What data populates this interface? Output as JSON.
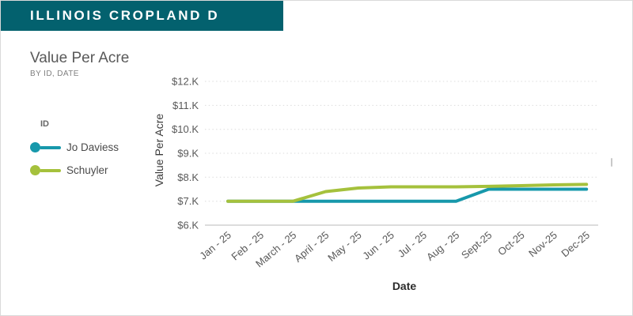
{
  "header": {
    "title": "ILLINOIS CROPLAND D"
  },
  "card": {
    "title": "Value Per Acre",
    "subtitle": "BY ID, DATE"
  },
  "legend": {
    "title": "ID"
  },
  "axes": {
    "x_title": "Date",
    "y_title": "Value Per Acre"
  },
  "colors": {
    "header_bg": "#03616e",
    "jo_daviess": "#1798ab",
    "schuyler": "#a5c13c",
    "gridline": "#dcdcdc",
    "axis_line": "#c8c8c8",
    "tick_text": "#595959"
  },
  "chart_data": {
    "type": "line",
    "title": "Value Per Acre",
    "subtitle": "BY ID, DATE",
    "legend_title": "ID",
    "legend_position": "left",
    "xlabel": "Date",
    "ylabel": "Value Per Acre",
    "grid": "horizontal-dotted",
    "categories": [
      "Jan - 25",
      "Feb - 25",
      "March - 25",
      "April - 25",
      "May - 25",
      "Jun - 25",
      "Jul - 25",
      "Aug - 25",
      "Sept-25",
      "Oct-25",
      "Nov-25",
      "Dec-25"
    ],
    "y_ticks": [
      6,
      7,
      8,
      9,
      10,
      11,
      12
    ],
    "y_tick_labels": [
      "$6.K",
      "$7.K",
      "$8.K",
      "$9.K",
      "$10.K",
      "$11.K",
      "$12.K"
    ],
    "ylim": [
      6,
      12.5
    ],
    "series": [
      {
        "name": "Jo Daviess",
        "color": "#1798ab",
        "values": [
          7.0,
          7.0,
          7.0,
          7.0,
          7.0,
          7.0,
          7.0,
          7.0,
          7.5,
          7.5,
          7.5,
          7.5
        ]
      },
      {
        "name": "Schuyler",
        "color": "#a5c13c",
        "values": [
          7.0,
          7.0,
          7.0,
          7.4,
          7.55,
          7.6,
          7.6,
          7.6,
          7.62,
          7.65,
          7.68,
          7.7
        ]
      }
    ]
  }
}
